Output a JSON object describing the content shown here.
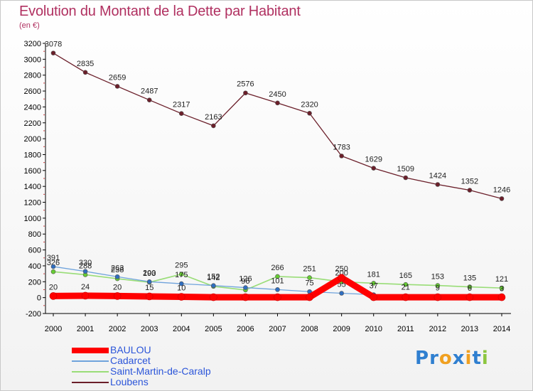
{
  "title": "Evolution du Montant de la Dette par Habitant",
  "unit": "(en €)",
  "logo": {
    "letters": [
      {
        "ch": "P",
        "color": "#2f7fd0"
      },
      {
        "ch": "r",
        "color": "#2f7fd0"
      },
      {
        "ch": "o",
        "color": "#f0a020"
      },
      {
        "ch": "x",
        "color": "#2f7fd0"
      },
      {
        "ch": "i",
        "color": "#f0a020"
      },
      {
        "ch": "t",
        "color": "#2f7fd0"
      },
      {
        "ch": "i",
        "color": "#8cc63f"
      }
    ]
  },
  "chart_data": {
    "type": "line",
    "x": [
      "2000",
      "2001",
      "2002",
      "2003",
      "2004",
      "2005",
      "2006",
      "2007",
      "2008",
      "2009",
      "2010",
      "2011",
      "2012",
      "2013",
      "2014"
    ],
    "ylim": [
      -200,
      3200
    ],
    "yticks": [
      -200,
      0,
      200,
      400,
      600,
      800,
      1000,
      1200,
      1400,
      1600,
      1800,
      2000,
      2200,
      2400,
      2600,
      2800,
      3000,
      3200
    ],
    "grid": false,
    "legend_position": "bottom-left",
    "series": [
      {
        "name": "Loubens",
        "color": "#6b1f2a",
        "marker": "#6b1f2a",
        "width": 1.3,
        "values": [
          3078,
          2835,
          2659,
          2487,
          2317,
          2163,
          2576,
          2450,
          2320,
          1783,
          1629,
          1509,
          1424,
          1352,
          1246
        ],
        "labels": [
          "3078",
          "2835",
          "2659",
          "2487",
          "2317",
          "2163",
          "2576",
          "2450",
          "2320",
          "1783",
          "1629",
          "1509",
          "1424",
          "1352",
          "1246"
        ]
      },
      {
        "name": "Saint-Martin-de-Caralp",
        "color": "#99dd77",
        "marker": "#66cc33",
        "width": 1.6,
        "values": [
          326,
          288,
          238,
          193,
          295,
          142,
          96,
          266,
          251,
          200,
          181,
          165,
          153,
          135,
          121
        ],
        "labels": [
          "326",
          "288",
          "238",
          "193",
          "295",
          "142",
          "96",
          "266",
          "251",
          "200",
          "181",
          "165",
          "153",
          "135",
          "121"
        ]
      },
      {
        "name": "Cadarcet",
        "color": "#6fa3dc",
        "marker": "#2f6ec0",
        "width": 1.3,
        "values": [
          391,
          330,
          263,
          200,
          175,
          152,
          126,
          101,
          75,
          55,
          37,
          21,
          9,
          6,
          3
        ],
        "labels": [
          "391",
          "330",
          "263",
          "200",
          "175",
          "152",
          "126",
          "101",
          "75",
          "55",
          "37",
          "21",
          "9",
          "6",
          "3"
        ]
      },
      {
        "name": "BAULOU",
        "color": "#ff0000",
        "marker": "#ff0000",
        "width": 9,
        "values": [
          20,
          24,
          20,
          15,
          10,
          5,
          5,
          5,
          5,
          250,
          5,
          5,
          5,
          5,
          5
        ],
        "labels": [
          "20",
          "24",
          "20",
          "15",
          "10",
          "",
          "",
          "",
          "",
          "250",
          "",
          "",
          "",
          "",
          ""
        ]
      }
    ],
    "legend": [
      "BAULOU",
      "Cadarcet",
      "Saint-Martin-de-Caralp",
      "Loubens"
    ]
  }
}
